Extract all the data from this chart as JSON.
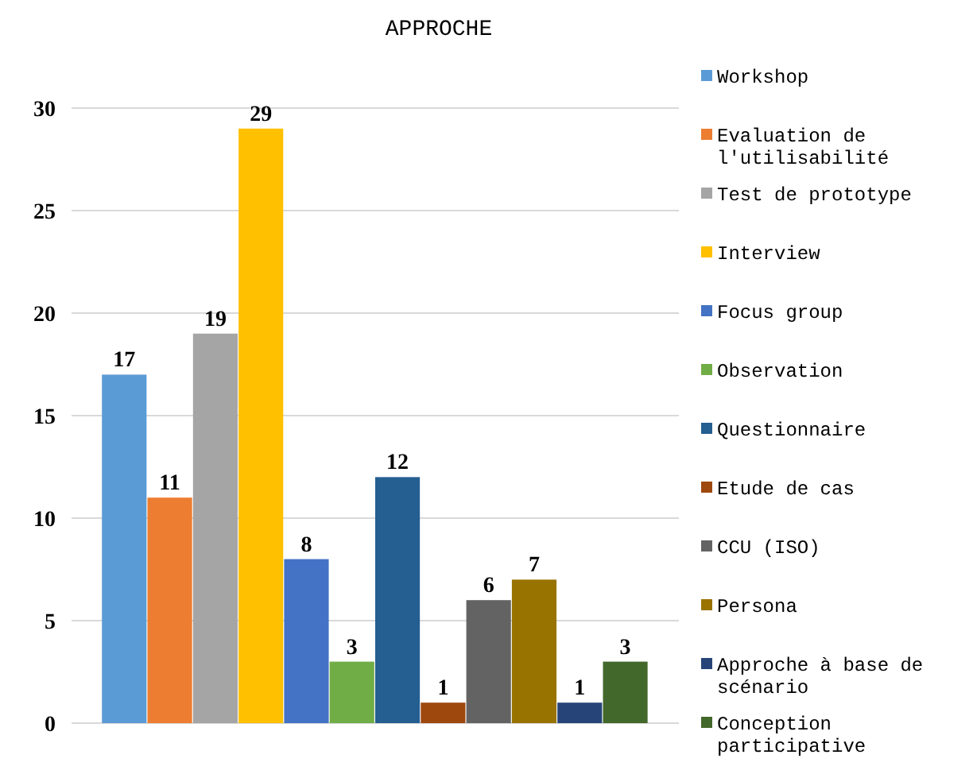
{
  "chart_data": {
    "type": "bar",
    "title": "APPROCHE",
    "categories": [
      null
    ],
    "series": [
      {
        "name": "Workshop",
        "color": "#5b9bd5",
        "values": [
          17
        ]
      },
      {
        "name": "Evaluation de l'utilisabilité",
        "color": "#ed7d31",
        "values": [
          11
        ]
      },
      {
        "name": "Test de prototype",
        "color": "#a5a5a5",
        "values": [
          19
        ]
      },
      {
        "name": "Interview",
        "color": "#ffc000",
        "values": [
          29
        ]
      },
      {
        "name": "Focus group",
        "color": "#4472c4",
        "values": [
          8
        ]
      },
      {
        "name": "Observation",
        "color": "#70ad47",
        "values": [
          3
        ]
      },
      {
        "name": "Questionnaire",
        "color": "#255e91",
        "values": [
          12
        ]
      },
      {
        "name": "Etude de cas",
        "color": "#9e480e",
        "values": [
          1
        ]
      },
      {
        "name": "CCU (ISO)",
        "color": "#636363",
        "values": [
          6
        ]
      },
      {
        "name": "Persona",
        "color": "#997300",
        "values": [
          7
        ]
      },
      {
        "name": "Approche à base de scénario",
        "color": "#264478",
        "values": [
          1
        ]
      },
      {
        "name": "Conception participative",
        "color": "#43682b",
        "values": [
          3
        ]
      }
    ],
    "ylim": [
      0,
      30
    ],
    "yticks": [
      0,
      5,
      10,
      15,
      20,
      25,
      30
    ],
    "grid": "y",
    "legend": "right",
    "data_labels": true
  }
}
